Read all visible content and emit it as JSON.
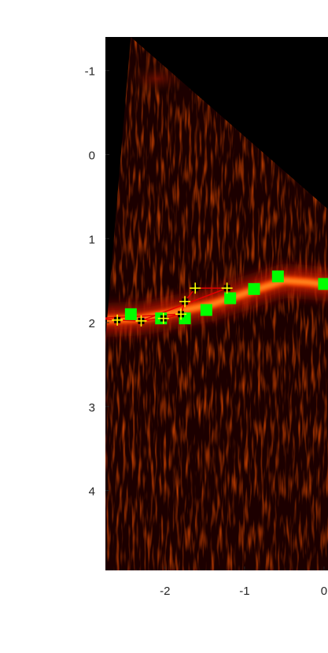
{
  "chart_data": {
    "type": "heatmap",
    "title": "",
    "xlabel": "",
    "ylabel": "",
    "xlim": [
      -2.75,
      0.05
    ],
    "ylim": [
      -1.4,
      4.95
    ],
    "y_reversed": true,
    "colormap": [
      "#000000",
      "#3a0000",
      "#8a0a00",
      "#d42a00",
      "#ff7a10",
      "#ffd060"
    ],
    "x_ticks": [
      -2,
      -1,
      0
    ],
    "x_tick_labels": [
      "-2",
      "-1",
      "0"
    ],
    "y_ticks": [
      -1,
      0,
      1,
      2,
      3,
      4
    ],
    "y_tick_labels": [
      "-1",
      "0",
      "1",
      "2",
      "3",
      "4"
    ],
    "fan_boundary": [
      [
        -2.43,
        -1.4
      ],
      [
        0.05,
        0.65
      ],
      [
        0.05,
        4.95
      ],
      [
        -2.75,
        4.95
      ],
      [
        -2.75,
        2.2
      ]
    ],
    "ridge_path": [
      [
        -2.75,
        1.97
      ],
      [
        -2.3,
        1.95
      ],
      [
        -1.9,
        1.88
      ],
      [
        -1.4,
        1.78
      ],
      [
        -0.9,
        1.62
      ],
      [
        -0.5,
        1.5
      ],
      [
        -0.2,
        1.52
      ],
      [
        0.05,
        1.55
      ]
    ],
    "series": [
      {
        "marker": "square",
        "color": "#00ff00",
        "x": [
          -2.43,
          -2.05,
          -1.75,
          -1.48,
          -1.18,
          -0.88,
          -0.58,
          0.0
        ],
        "y": [
          1.9,
          1.95,
          1.95,
          1.85,
          1.71,
          1.6,
          1.45,
          1.54
        ]
      },
      {
        "marker": "plus",
        "color": "#ffff00",
        "line_color": "#e00000",
        "x": [
          -2.86,
          -2.6,
          -2.3,
          -2.02,
          -1.8,
          -1.75,
          -1.62,
          -1.22
        ],
        "y": [
          1.95,
          1.97,
          1.98,
          1.95,
          1.9,
          1.75,
          1.59,
          1.59
        ],
        "segments": [
          [
            0,
            1
          ],
          [
            1,
            2
          ],
          [
            2,
            3
          ],
          [
            3,
            4
          ],
          [
            4,
            5
          ],
          [
            5,
            6
          ],
          [
            6,
            7
          ],
          [
            2,
            7
          ],
          [
            0,
            4
          ]
        ]
      }
    ]
  }
}
